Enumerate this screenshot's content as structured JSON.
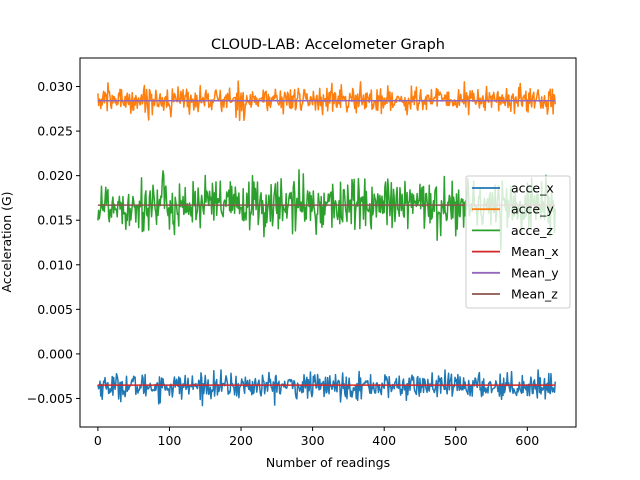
{
  "chart_data": {
    "type": "line",
    "title": "CLOUD-LAB: Accelometer Graph",
    "xlabel": "Number of readings",
    "ylabel": "Acceleration (G)",
    "xlim": [
      -25,
      668
    ],
    "ylim": [
      -0.0082,
      0.0332
    ],
    "xticks": [
      0,
      100,
      200,
      300,
      400,
      500,
      600
    ],
    "xtick_labels": [
      "0",
      "100",
      "200",
      "300",
      "400",
      "500",
      "600"
    ],
    "yticks": [
      -0.005,
      0.0,
      0.005,
      0.01,
      0.015,
      0.02,
      0.025,
      0.03
    ],
    "ytick_labels": [
      "−0.005",
      "0.000",
      "0.005",
      "0.010",
      "0.015",
      "0.020",
      "0.025",
      "0.030"
    ],
    "grid": false,
    "legend_position": "center-right",
    "num_readings": 640,
    "series": [
      {
        "name": "acce_x",
        "color": "#1f77b4",
        "kind": "noise",
        "mean": -0.0036,
        "sd": 0.0007,
        "min": -0.0058,
        "max": -0.0018
      },
      {
        "name": "acce_y",
        "color": "#ff7f0e",
        "kind": "noise",
        "mean": 0.0285,
        "sd": 0.00075,
        "min": 0.0262,
        "max": 0.0313
      },
      {
        "name": "acce_z",
        "color": "#2ca02c",
        "kind": "noise",
        "mean": 0.0167,
        "sd": 0.0015,
        "min": 0.011,
        "max": 0.0211
      },
      {
        "name": "Mean_x",
        "color": "#d62728",
        "kind": "constant",
        "value": -0.0035
      },
      {
        "name": "Mean_y",
        "color": "#9467bd",
        "kind": "constant",
        "value": 0.0284
      },
      {
        "name": "Mean_z",
        "color": "#8c564b",
        "kind": "constant",
        "value": 0.0167
      }
    ]
  }
}
